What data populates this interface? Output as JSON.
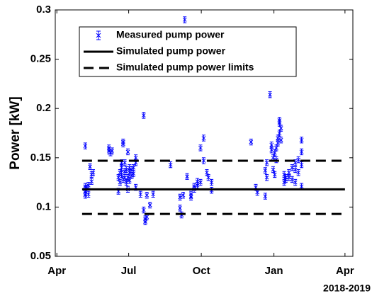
{
  "chart_data": {
    "type": "scatter",
    "ylabel": "Power [kW]",
    "xlabel": "2018-2019",
    "xlim": [
      -2,
      375
    ],
    "ylim": [
      0.05,
      0.3
    ],
    "xticks": [
      {
        "value": 0,
        "label": "Apr"
      },
      {
        "value": 91,
        "label": "Jul"
      },
      {
        "value": 183,
        "label": "Oct"
      },
      {
        "value": 275,
        "label": "Jan"
      },
      {
        "value": 365,
        "label": "Apr"
      }
    ],
    "yticks": [
      0.05,
      0.1,
      0.15,
      0.2,
      0.25,
      0.3
    ],
    "legend": "upper left",
    "series": [
      {
        "name": "Measured pump power",
        "color": "#0000ff",
        "error": 0.003,
        "x": [
          36,
          36,
          36,
          36,
          36,
          38,
          40,
          40,
          42,
          44,
          44,
          46,
          66,
          66,
          68,
          70,
          78,
          78,
          80,
          80,
          82,
          82,
          82,
          84,
          84,
          84,
          86,
          86,
          86,
          88,
          88,
          90,
          90,
          90,
          92,
          92,
          92,
          95,
          95,
          97,
          97,
          100,
          100,
          100,
          106,
          110,
          110,
          112,
          112,
          114,
          114,
          118,
          122,
          144,
          156,
          156,
          158,
          160,
          162,
          165,
          170,
          170,
          174,
          174,
          178,
          178,
          182,
          182,
          186,
          186,
          190,
          192,
          196,
          196,
          246,
          252,
          254,
          264,
          264,
          266,
          266,
          270,
          272,
          272,
          274,
          274,
          276,
          276,
          278,
          278,
          280,
          280,
          282,
          282,
          282,
          284,
          284,
          288,
          288,
          290,
          290,
          294,
          294,
          298,
          298,
          302,
          302,
          302,
          306,
          306,
          310,
          310,
          310,
          310
        ],
        "values": [
          0.162,
          0.118,
          0.121,
          0.112,
          0.115,
          0.119,
          0.113,
          0.122,
          0.141,
          0.126,
          0.133,
          0.135,
          0.157,
          0.16,
          0.155,
          0.157,
          0.116,
          0.13,
          0.135,
          0.125,
          0.14,
          0.145,
          0.133,
          0.164,
          0.166,
          0.128,
          0.136,
          0.13,
          0.145,
          0.138,
          0.125,
          0.156,
          0.118,
          0.13,
          0.135,
          0.14,
          0.127,
          0.132,
          0.138,
          0.134,
          0.14,
          0.15,
          0.145,
          0.12,
          0.113,
          0.193,
          0.097,
          0.088,
          0.085,
          0.09,
          0.112,
          0.102,
          0.113,
          0.143,
          0.099,
          0.11,
          0.092,
          0.112,
          0.29,
          0.131,
          0.11,
          0.113,
          0.118,
          0.121,
          0.122,
          0.126,
          0.125,
          0.16,
          0.147,
          0.17,
          0.135,
          0.13,
          0.117,
          0.125,
          0.166,
          0.12,
          0.115,
          0.137,
          0.111,
          0.13,
          0.145,
          0.214,
          0.163,
          0.158,
          0.138,
          0.15,
          0.155,
          0.133,
          0.148,
          0.16,
          0.165,
          0.17,
          0.175,
          0.188,
          0.185,
          0.18,
          0.168,
          0.133,
          0.125,
          0.128,
          0.13,
          0.13,
          0.135,
          0.14,
          0.128,
          0.138,
          0.145,
          0.125,
          0.148,
          0.135,
          0.156,
          0.168,
          0.121,
          0.143
        ]
      },
      {
        "name": "Simulated pump power",
        "color": "#000000",
        "style": "solid",
        "x": [
          32,
          365
        ],
        "levels": [
          0.118
        ]
      },
      {
        "name": "Simulated pump power limits",
        "color": "#000000",
        "style": "dashed",
        "x": [
          32,
          365
        ],
        "levels": [
          0.147,
          0.093
        ]
      }
    ]
  }
}
